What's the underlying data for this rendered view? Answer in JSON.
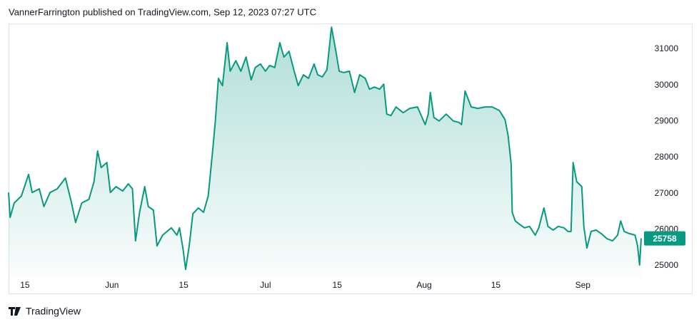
{
  "chart_data": {
    "type": "area",
    "title": "VannerFarrington published on TradingView.com, Sep 12, 2023 07:27 UTC",
    "color": "#089981",
    "x": [
      10.8,
      11.1,
      11.9,
      13.3,
      14.7,
      15.4,
      16.8,
      17.7,
      18.9,
      20.3,
      21.9,
      23.1,
      23.9,
      25.1,
      26.5,
      27.5,
      28.2,
      28.9,
      30.0,
      30.7,
      31.8,
      33.1,
      34.2,
      35.0,
      35.6,
      36.4,
      37.4,
      38.1,
      39.1,
      39.8,
      40.9,
      42.6,
      43.7,
      44.2,
      44.9,
      45.4,
      46.1,
      46.8,
      47.9,
      48.9,
      49.8,
      50.7,
      51.2,
      51.8,
      52.6,
      53.5,
      54.1,
      55.2,
      56.2,
      57.2,
      58.2,
      59.0,
      60.0,
      61.0,
      61.8,
      62.8,
      63.8,
      64.6,
      65.6,
      66.6,
      67.4,
      68.4,
      69.4,
      70.5,
      71.2,
      72.1,
      73.0,
      73.9,
      74.7,
      75.4,
      76.3,
      77.4,
      78.4,
      79.4,
      80.5,
      81.3,
      82.3,
      83.3,
      84.1,
      84.7,
      85.5,
      86.5,
      87.9,
      89.2,
      90.7,
      92.2,
      92.8,
      93.2,
      93.9,
      94.9,
      96.3,
      97.7,
      98.8,
      99.3,
      100.0,
      101.2,
      102.5,
      103.9,
      105.3,
      106.7,
      107.8,
      108.4,
      109.0,
      109.2,
      109.8,
      110.6,
      111.6,
      112.6,
      113.7,
      114.4,
      115.4,
      116.2,
      117.2,
      118.2,
      119.3,
      120.1,
      120.7,
      121.1,
      121.8,
      122.8,
      123.2,
      123.8,
      124.6,
      125.6,
      126.6,
      127.7,
      128.8,
      129.8,
      130.4,
      131.1,
      132.1,
      133.2,
      133.7,
      134.1,
      134.4
    ],
    "values": [
      27030,
      26340,
      26740,
      26930,
      27530,
      27030,
      27130,
      26640,
      27030,
      27130,
      27430,
      26740,
      26200,
      26740,
      26840,
      27330,
      28180,
      27720,
      27860,
      27030,
      27190,
      27070,
      27270,
      27130,
      25690,
      26480,
      27190,
      26640,
      26540,
      25550,
      25850,
      26050,
      25850,
      26050,
      25460,
      24900,
      25550,
      26440,
      26600,
      26480,
      26930,
      28220,
      29010,
      30190,
      29990,
      31180,
      30390,
      30680,
      30390,
      30780,
      30150,
      30490,
      30590,
      30390,
      30550,
      30490,
      31180,
      30780,
      30940,
      30390,
      29990,
      30290,
      30190,
      30590,
      30290,
      30230,
      30430,
      31610,
      30980,
      30390,
      30350,
      30390,
      29800,
      30290,
      30190,
      29890,
      29950,
      29890,
      30030,
      29200,
      29160,
      29400,
      29240,
      29360,
      29400,
      28910,
      29200,
      29800,
      29110,
      29010,
      29200,
      29010,
      28970,
      28910,
      29840,
      29400,
      29360,
      29400,
      29400,
      29300,
      29050,
      28610,
      27820,
      26480,
      26240,
      26150,
      26050,
      26090,
      25850,
      26050,
      26600,
      26090,
      25990,
      26090,
      26050,
      25950,
      25950,
      27860,
      27330,
      27190,
      26090,
      25490,
      25950,
      25990,
      25890,
      25750,
      25690,
      25850,
      26240,
      25950,
      25890,
      25850,
      25550,
      25020,
      25758
    ],
    "xlim": [
      10.8,
      134.4
    ],
    "xticks": [
      {
        "value": 14,
        "label": "15"
      },
      {
        "value": 31,
        "label": "Jun"
      },
      {
        "value": 45,
        "label": "15"
      },
      {
        "value": 61,
        "label": "Jul"
      },
      {
        "value": 75,
        "label": "15"
      },
      {
        "value": 92,
        "label": "Aug"
      },
      {
        "value": 106,
        "label": "15"
      },
      {
        "value": 123,
        "label": "Sep"
      }
    ],
    "ylim": [
      24665,
      31710
    ],
    "yticks": [
      25000,
      26000,
      27000,
      28000,
      29000,
      30000,
      31000
    ]
  },
  "footer": {
    "brand": "TradingView"
  }
}
